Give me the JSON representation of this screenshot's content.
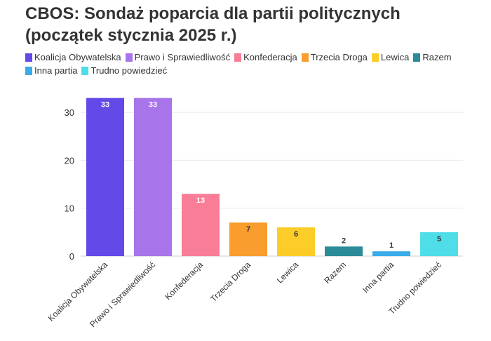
{
  "chart_data": {
    "type": "bar",
    "title_line1": "CBOS: Sondaż poparcia dla partii politycznych",
    "title_line2": "(początek stycznia 2025 r.)",
    "categories": [
      "Koalicja Obywatelska",
      "Prawo i Sprawiedliwość",
      "Konfederacja",
      "Trzecia Droga",
      "Lewica",
      "Razem",
      "Inna partia",
      "Trudno powiedzieć"
    ],
    "values": [
      33,
      33,
      13,
      7,
      6,
      2,
      1,
      5
    ],
    "value_labels": [
      "33",
      "33",
      "13",
      "7",
      "6",
      "2",
      "1",
      "5"
    ],
    "colors": [
      "#6349e8",
      "#a874e9",
      "#f97d97",
      "#f89d2e",
      "#fccd28",
      "#2b8b97",
      "#3aabe9",
      "#4fdde8"
    ],
    "label_colors": [
      "#ffffff",
      "#ffffff",
      "#ffffff",
      "#333333",
      "#333333",
      "#333333",
      "#333333",
      "#333333"
    ],
    "label_inside": [
      true,
      true,
      true,
      true,
      true,
      false,
      false,
      true
    ],
    "ylim": [
      0,
      35
    ],
    "yticks": [
      "0",
      "10",
      "20",
      "30"
    ],
    "ytick_values": [
      0,
      10,
      20,
      30
    ],
    "xlabel": "",
    "ylabel": "",
    "grid": true,
    "legend_position": "top-left"
  }
}
